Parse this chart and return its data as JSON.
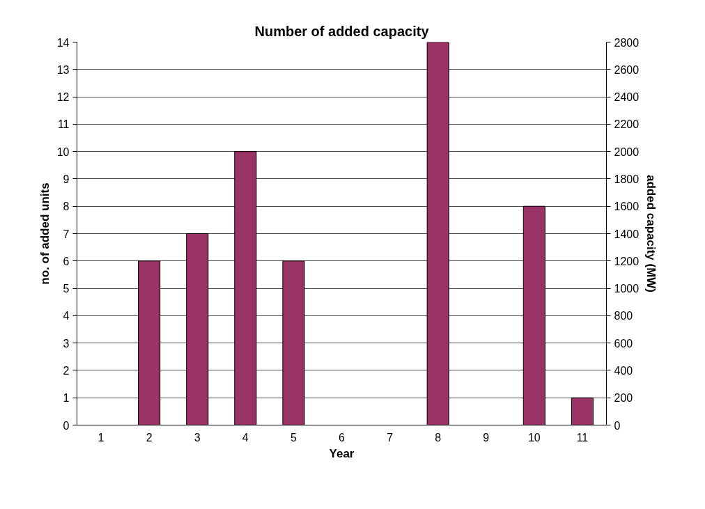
{
  "chart_data": {
    "type": "bar",
    "title": "Number of added capacity",
    "xlabel": "Year",
    "ylabel": "no. of added units",
    "y2label": "added capacity (MW)",
    "categories": [
      "1",
      "2",
      "3",
      "4",
      "5",
      "6",
      "7",
      "8",
      "9",
      "10",
      "11"
    ],
    "series": [
      {
        "color": "#993366",
        "values": [
          0,
          6,
          7,
          10,
          6,
          0,
          0,
          14,
          0,
          8,
          1
        ]
      }
    ],
    "ylim": [
      0,
      14
    ],
    "yticks": [
      0,
      1,
      2,
      3,
      4,
      5,
      6,
      7,
      8,
      9,
      10,
      11,
      12,
      13,
      14
    ],
    "y2lim": [
      0,
      2800
    ],
    "y2ticks": [
      0,
      200,
      400,
      600,
      800,
      1000,
      1200,
      1400,
      1600,
      1800,
      2000,
      2200,
      2400,
      2600,
      2800
    ],
    "grid": "y"
  }
}
